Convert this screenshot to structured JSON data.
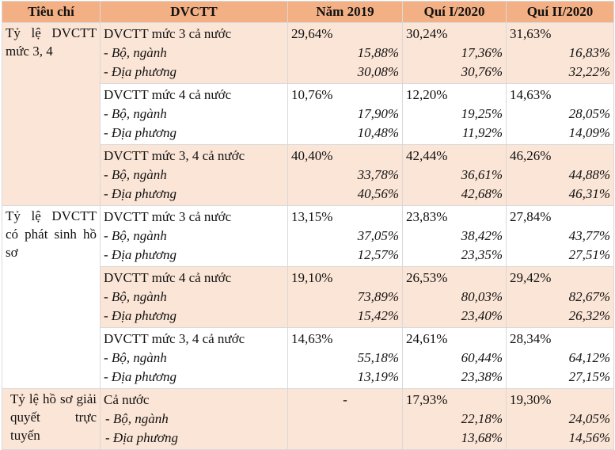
{
  "headers": [
    "Tiêu chí",
    "DVCTT",
    "Năm 2019",
    "Quí I/2020",
    "Quí II/2020"
  ],
  "rows": [
    {
      "criterion": "Tỷ lệ DVCTT mức 3, 4",
      "groups": [
        {
          "lines": [
            "DVCTT mức 3 cả nước",
            "- Bộ, ngành",
            "- Địa phương"
          ],
          "y2019": [
            "29,64%",
            "15,88%",
            "30,08%"
          ],
          "q1": [
            "30,24%",
            "17,36%",
            "30,76%"
          ],
          "q2": [
            "31,63%",
            "16,83%",
            "32,22%"
          ]
        },
        {
          "lines": [
            "DVCTT mức 4 cả nước",
            "- Bộ, ngành",
            "- Địa phương"
          ],
          "y2019": [
            "10,76%",
            "17,90%",
            "10,48%"
          ],
          "q1": [
            "12,20%",
            "19,25%",
            "11,92%"
          ],
          "q2": [
            "14,63%",
            "28,05%",
            "14,09%"
          ]
        },
        {
          "lines": [
            "DVCTT mức 3, 4 cả nước",
            "- Bộ, ngành",
            "- Địa phương"
          ],
          "y2019": [
            "40,40%",
            "33,78%",
            "40,56%"
          ],
          "q1": [
            "42,44%",
            "36,61%",
            "42,68%"
          ],
          "q2": [
            "46,26%",
            "44,88%",
            "46,31%"
          ]
        }
      ]
    },
    {
      "criterion": "Tỷ lệ DVCTT có phát sinh hồ sơ",
      "groups": [
        {
          "lines": [
            "DVCTT mức 3 cả nước",
            "- Bộ, ngành",
            "- Địa phương"
          ],
          "y2019": [
            "13,15%",
            "37,05%",
            "12,57%"
          ],
          "q1": [
            "23,83%",
            "38,42%",
            "23,35%"
          ],
          "q2": [
            "27,84%",
            "43,77%",
            "27,51%"
          ]
        },
        {
          "lines": [
            "DVCTT mức 4 cả nước",
            "- Bộ, ngành",
            "- Địa phương"
          ],
          "y2019": [
            "19,10%",
            "73,89%",
            "15,42%"
          ],
          "q1": [
            "26,53%",
            "80,03%",
            "23,40%"
          ],
          "q2": [
            "29,42%",
            "82,67%",
            "26,32%"
          ]
        },
        {
          "lines": [
            "DVCTT mức 3, 4 cả nước",
            "- Bộ, ngành",
            "- Địa phương"
          ],
          "y2019": [
            "14,63%",
            "55,18%",
            "13,19%"
          ],
          "q1": [
            "24,61%",
            "60,44%",
            "23,38%"
          ],
          "q2": [
            "28,34%",
            "64,12%",
            "27,15%"
          ]
        }
      ]
    },
    {
      "criterion": "Tỷ lệ hồ sơ giải quyết trực tuyến",
      "groups": [
        {
          "lines": [
            "Cả nước",
            " - Bộ, ngành",
            " - Địa phương"
          ],
          "y2019": [
            "-",
            "",
            ""
          ],
          "q1": [
            "17,93%",
            "22,18%",
            "13,68%"
          ],
          "q2": [
            "19,30%",
            "24,05%",
            "14,56%"
          ]
        }
      ]
    }
  ]
}
